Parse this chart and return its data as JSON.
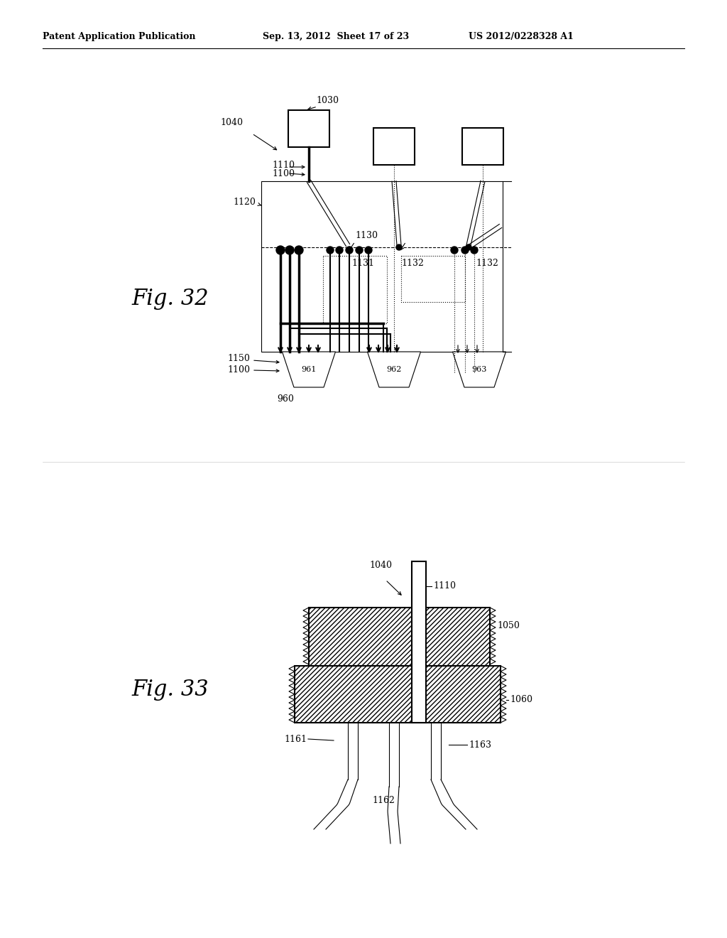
{
  "bg_color": "#ffffff",
  "header_left": "Patent Application Publication",
  "header_mid": "Sep. 13, 2012  Sheet 17 of 23",
  "header_right": "US 2012/0228328 A1",
  "fig32_label": "Fig. 32",
  "fig33_label": "Fig. 33"
}
